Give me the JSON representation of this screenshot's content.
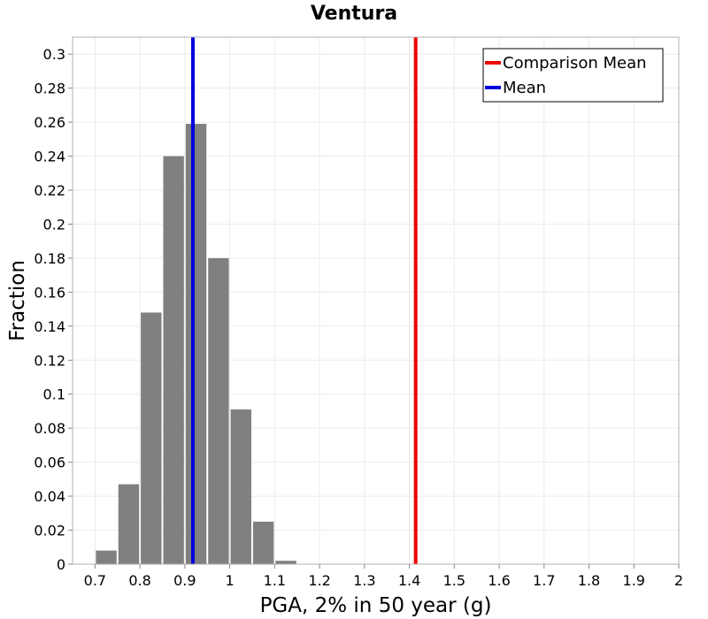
{
  "chart_data": {
    "type": "bar",
    "title": "Ventura",
    "xlabel": "PGA, 2% in 50 year (g)",
    "ylabel": "Fraction",
    "xlim": [
      0.65,
      2.0
    ],
    "ylim": [
      0,
      0.31
    ],
    "grid": true,
    "bin_width": 0.05,
    "bins": [
      {
        "x": 0.725,
        "value": 0.008
      },
      {
        "x": 0.775,
        "value": 0.047
      },
      {
        "x": 0.825,
        "value": 0.148
      },
      {
        "x": 0.875,
        "value": 0.24
      },
      {
        "x": 0.925,
        "value": 0.259
      },
      {
        "x": 0.975,
        "value": 0.18
      },
      {
        "x": 1.025,
        "value": 0.091
      },
      {
        "x": 1.075,
        "value": 0.025
      },
      {
        "x": 1.125,
        "value": 0.002
      }
    ],
    "bar_color": "#808080",
    "x_ticks": [
      {
        "value": 0.7,
        "label": "0.7"
      },
      {
        "value": 0.8,
        "label": "0.8"
      },
      {
        "value": 0.9,
        "label": "0.9"
      },
      {
        "value": 1.0,
        "label": "1"
      },
      {
        "value": 1.1,
        "label": "1.1"
      },
      {
        "value": 1.2,
        "label": "1.2"
      },
      {
        "value": 1.3,
        "label": "1.3"
      },
      {
        "value": 1.4,
        "label": "1.4"
      },
      {
        "value": 1.5,
        "label": "1.5"
      },
      {
        "value": 1.6,
        "label": "1.6"
      },
      {
        "value": 1.7,
        "label": "1.7"
      },
      {
        "value": 1.8,
        "label": "1.8"
      },
      {
        "value": 1.9,
        "label": "1.9"
      },
      {
        "value": 2.0,
        "label": "2"
      }
    ],
    "y_ticks": [
      {
        "value": 0,
        "label": "0"
      },
      {
        "value": 0.02,
        "label": "0.02"
      },
      {
        "value": 0.04,
        "label": "0.04"
      },
      {
        "value": 0.06,
        "label": "0.06"
      },
      {
        "value": 0.08,
        "label": "0.08"
      },
      {
        "value": 0.1,
        "label": "0.1"
      },
      {
        "value": 0.12,
        "label": "0.12"
      },
      {
        "value": 0.14,
        "label": "0.14"
      },
      {
        "value": 0.16,
        "label": "0.16"
      },
      {
        "value": 0.18,
        "label": "0.18"
      },
      {
        "value": 0.2,
        "label": "0.2"
      },
      {
        "value": 0.22,
        "label": "0.22"
      },
      {
        "value": 0.24,
        "label": "0.24"
      },
      {
        "value": 0.26,
        "label": "0.26"
      },
      {
        "value": 0.28,
        "label": "0.28"
      },
      {
        "value": 0.3,
        "label": "0.3"
      }
    ],
    "vlines": [
      {
        "name": "Comparison Mean",
        "x": 1.414,
        "color": "#ee0000"
      },
      {
        "name": "Mean",
        "x": 0.918,
        "color": "#0000dd"
      }
    ],
    "legend": {
      "position": "top-right",
      "entries": [
        {
          "label": "Comparison Mean",
          "color": "#ee0000"
        },
        {
          "label": "Mean",
          "color": "#0000dd"
        }
      ]
    }
  }
}
